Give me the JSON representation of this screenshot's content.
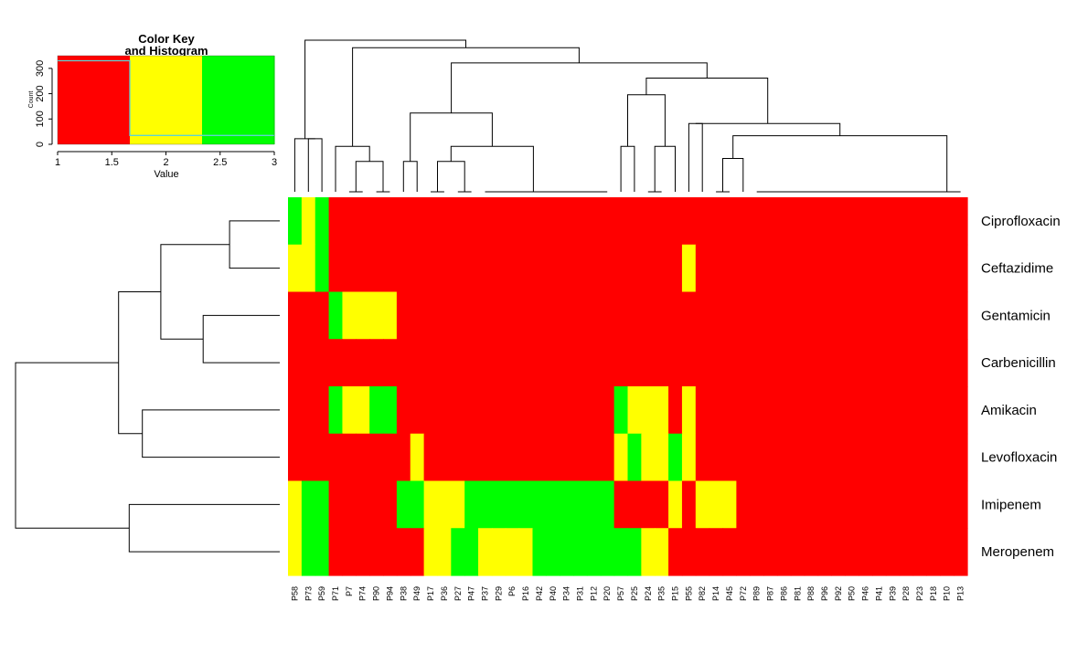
{
  "chart_data": {
    "type": "heatmap",
    "color_key": {
      "title_line1": "Color Key",
      "title_line2": "and Histogram",
      "xlabel": "Value",
      "ylabel": "Count",
      "x_ticks": [
        "1",
        "1.5",
        "2",
        "2.5",
        "3"
      ],
      "x_tick_values": [
        1,
        1.5,
        2,
        2.5,
        3
      ],
      "y_ticks": [
        "0",
        "100",
        "200",
        "300"
      ],
      "y_tick_values": [
        0,
        100,
        200,
        300
      ],
      "value_range": [
        1,
        3
      ],
      "count_range": [
        0,
        350
      ],
      "histogram": [
        {
          "value": 1,
          "count": 330
        },
        {
          "value": 2,
          "count": 35
        },
        {
          "value": 3,
          "count": 35
        }
      ],
      "colors": {
        "1": "#ff0000",
        "2": "#ffff00",
        "3": "#00ff00"
      },
      "histogram_line_color": "#5fd3d3"
    },
    "rows": [
      "Ciprofloxacin",
      "Ceftazidime",
      "Gentamicin",
      "Carbenicillin",
      "Amikacin",
      "Levofloxacin",
      "Imipenem",
      "Meropenem"
    ],
    "columns": [
      "P58",
      "P73",
      "P59",
      "P71",
      "P7",
      "P74",
      "P90",
      "P94",
      "P38",
      "P49",
      "P17",
      "P36",
      "P27",
      "P47",
      "P37",
      "P29",
      "P6",
      "P16",
      "P42",
      "P40",
      "P34",
      "P31",
      "P12",
      "P20",
      "P57",
      "P25",
      "P24",
      "P35",
      "P15",
      "P55",
      "P82",
      "P14",
      "P45",
      "P72",
      "P89",
      "P87",
      "P86",
      "P81",
      "P88",
      "P96",
      "P92",
      "P50",
      "P46",
      "P41",
      "P39",
      "P28",
      "P23",
      "P18",
      "P10",
      "P13"
    ],
    "values": [
      [
        3,
        2,
        3,
        1,
        1,
        1,
        1,
        1,
        1,
        1,
        1,
        1,
        1,
        1,
        1,
        1,
        1,
        1,
        1,
        1,
        1,
        1,
        1,
        1,
        1,
        1,
        1,
        1,
        1,
        1,
        1,
        1,
        1,
        1,
        1,
        1,
        1,
        1,
        1,
        1,
        1,
        1,
        1,
        1,
        1,
        1,
        1,
        1,
        1,
        1
      ],
      [
        2,
        2,
        3,
        1,
        1,
        1,
        1,
        1,
        1,
        1,
        1,
        1,
        1,
        1,
        1,
        1,
        1,
        1,
        1,
        1,
        1,
        1,
        1,
        1,
        1,
        1,
        1,
        1,
        1,
        2,
        1,
        1,
        1,
        1,
        1,
        1,
        1,
        1,
        1,
        1,
        1,
        1,
        1,
        1,
        1,
        1,
        1,
        1,
        1,
        1
      ],
      [
        1,
        1,
        1,
        3,
        2,
        2,
        2,
        2,
        1,
        1,
        1,
        1,
        1,
        1,
        1,
        1,
        1,
        1,
        1,
        1,
        1,
        1,
        1,
        1,
        1,
        1,
        1,
        1,
        1,
        1,
        1,
        1,
        1,
        1,
        1,
        1,
        1,
        1,
        1,
        1,
        1,
        1,
        1,
        1,
        1,
        1,
        1,
        1,
        1,
        1
      ],
      [
        1,
        1,
        1,
        1,
        1,
        1,
        1,
        1,
        1,
        1,
        1,
        1,
        1,
        1,
        1,
        1,
        1,
        1,
        1,
        1,
        1,
        1,
        1,
        1,
        1,
        1,
        1,
        1,
        1,
        1,
        1,
        1,
        1,
        1,
        1,
        1,
        1,
        1,
        1,
        1,
        1,
        1,
        1,
        1,
        1,
        1,
        1,
        1,
        1,
        1
      ],
      [
        1,
        1,
        1,
        3,
        2,
        2,
        3,
        3,
        1,
        1,
        1,
        1,
        1,
        1,
        1,
        1,
        1,
        1,
        1,
        1,
        1,
        1,
        1,
        1,
        3,
        2,
        2,
        2,
        1,
        2,
        1,
        1,
        1,
        1,
        1,
        1,
        1,
        1,
        1,
        1,
        1,
        1,
        1,
        1,
        1,
        1,
        1,
        1,
        1,
        1
      ],
      [
        1,
        1,
        1,
        1,
        1,
        1,
        1,
        1,
        1,
        2,
        1,
        1,
        1,
        1,
        1,
        1,
        1,
        1,
        1,
        1,
        1,
        1,
        1,
        1,
        2,
        3,
        2,
        2,
        3,
        2,
        1,
        1,
        1,
        1,
        1,
        1,
        1,
        1,
        1,
        1,
        1,
        1,
        1,
        1,
        1,
        1,
        1,
        1,
        1,
        1
      ],
      [
        2,
        3,
        3,
        1,
        1,
        1,
        1,
        1,
        3,
        3,
        2,
        2,
        2,
        3,
        3,
        3,
        3,
        3,
        3,
        3,
        3,
        3,
        3,
        3,
        1,
        1,
        1,
        1,
        2,
        1,
        2,
        2,
        2,
        1,
        1,
        1,
        1,
        1,
        1,
        1,
        1,
        1,
        1,
        1,
        1,
        1,
        1,
        1,
        1,
        1
      ],
      [
        2,
        3,
        3,
        1,
        1,
        1,
        1,
        1,
        1,
        1,
        2,
        2,
        3,
        3,
        2,
        2,
        2,
        2,
        3,
        3,
        3,
        3,
        3,
        3,
        3,
        3,
        2,
        2,
        1,
        1,
        1,
        1,
        1,
        1,
        1,
        1,
        1,
        1,
        1,
        1,
        1,
        1,
        1,
        1,
        1,
        1,
        1,
        1,
        1,
        1
      ]
    ],
    "row_dendrogram": {
      "leaves": [
        "Ciprofloxacin",
        "Ceftazidime",
        "Gentamicin",
        "Carbenicillin",
        "Amikacin",
        "Levofloxacin",
        "Imipenem",
        "Meropenem"
      ],
      "merges": [
        {
          "left": "L0",
          "right": "L1",
          "height": 0.19
        },
        {
          "left": "L2",
          "right": "L3",
          "height": 0.29
        },
        {
          "left": "M0",
          "right": "M1",
          "height": 0.45
        },
        {
          "left": "L4",
          "right": "L5",
          "height": 0.52
        },
        {
          "left": "M2",
          "right": "M3",
          "height": 0.61
        },
        {
          "left": "L6",
          "right": "L7",
          "height": 0.57
        },
        {
          "left": "M4",
          "right": "M5",
          "height": 1.0
        }
      ]
    },
    "column_dendrogram": {
      "leaves": [
        "P58",
        "P73",
        "P59",
        "P71",
        "P7",
        "P74",
        "P90",
        "P94",
        "P38",
        "P49",
        "P17",
        "P36",
        "P27",
        "P47",
        "P37",
        "P29",
        "P6",
        "P16",
        "P42",
        "P40",
        "P34",
        "P31",
        "P12",
        "P20",
        "P57",
        "P25",
        "P24",
        "P35",
        "P15",
        "P55",
        "P82",
        "P14",
        "P45",
        "P72",
        "P89",
        "P87",
        "P86",
        "P81",
        "P88",
        "P96",
        "P92",
        "P50",
        "P46",
        "P41",
        "P39",
        "P28",
        "P23",
        "P18",
        "P10",
        "P13"
      ],
      "merges": [
        {
          "left": "L1",
          "right": "L2",
          "height": 0.35
        },
        {
          "left": "L0",
          "right": "M0",
          "height": 0.35
        },
        {
          "left": "L4",
          "right": "L5",
          "height": 0.0
        },
        {
          "left": "L6",
          "right": "L7",
          "height": 0.0
        },
        {
          "left": "M2",
          "right": "M3",
          "height": 0.2
        },
        {
          "left": "L3",
          "right": "M4",
          "height": 0.3
        },
        {
          "left": "L8",
          "right": "L9",
          "height": 0.2
        },
        {
          "left": "L10",
          "right": "L11",
          "height": 0.0
        },
        {
          "left": "L12",
          "right": "L13",
          "height": 0.0
        },
        {
          "left": "M7",
          "right": "M8",
          "height": 0.2
        },
        {
          "left": "L14",
          "right": "L15",
          "height": 0.0
        },
        {
          "left": "L16",
          "right": "L17",
          "height": 0.0
        },
        {
          "left": "M10",
          "right": "M11",
          "height": 0.0
        },
        {
          "left": "L18",
          "right": "L19",
          "height": 0.0
        },
        {
          "left": "M12",
          "right": "M13",
          "height": 0.0
        },
        {
          "left": "L20",
          "right": "L21",
          "height": 0.0
        },
        {
          "left": "M14",
          "right": "M15",
          "height": 0.0
        },
        {
          "left": "L22",
          "right": "L23",
          "height": 0.0
        },
        {
          "left": "M16",
          "right": "M17",
          "height": 0.0
        },
        {
          "left": "M18",
          "right": "M10",
          "height": 0.0
        },
        {
          "left": "M9",
          "right": "M19",
          "height": 0.3
        },
        {
          "left": "M6",
          "right": "M20",
          "height": 0.52
        },
        {
          "left": "L24",
          "right": "L25",
          "height": 0.3
        },
        {
          "left": "L26",
          "right": "L27",
          "height": 0.0
        },
        {
          "left": "L28",
          "right": "M23",
          "height": 0.3
        },
        {
          "left": "M22",
          "right": "M24",
          "height": 0.64
        },
        {
          "left": "L29",
          "right": "L30",
          "height": 0.45
        },
        {
          "left": "L31",
          "right": "L32",
          "height": 0.0
        },
        {
          "left": "L33",
          "right": "M27",
          "height": 0.22
        },
        {
          "left": "L34",
          "right": "L35",
          "height": 0.0
        },
        {
          "left": "M29",
          "right": "L36",
          "height": 0.0
        },
        {
          "left": "M30",
          "right": "L37",
          "height": 0.0
        },
        {
          "left": "M31",
          "right": "L38",
          "height": 0.0
        },
        {
          "left": "M32",
          "right": "L39",
          "height": 0.0
        },
        {
          "left": "M33",
          "right": "L40",
          "height": 0.0
        },
        {
          "left": "M34",
          "right": "L41",
          "height": 0.0
        },
        {
          "left": "M35",
          "right": "L42",
          "height": 0.0
        },
        {
          "left": "M36",
          "right": "L43",
          "height": 0.0
        },
        {
          "left": "M37",
          "right": "L44",
          "height": 0.0
        },
        {
          "left": "M38",
          "right": "L45",
          "height": 0.0
        },
        {
          "left": "M39",
          "right": "L46",
          "height": 0.0
        },
        {
          "left": "M40",
          "right": "L47",
          "height": 0.0
        },
        {
          "left": "M41",
          "right": "L48",
          "height": 0.0
        },
        {
          "left": "M42",
          "right": "L49",
          "height": 0.0
        },
        {
          "left": "M28",
          "right": "M43",
          "height": 0.37
        },
        {
          "left": "M26",
          "right": "M44",
          "height": 0.45
        },
        {
          "left": "M25",
          "right": "M45",
          "height": 0.75
        },
        {
          "left": "M21",
          "right": "M46",
          "height": 0.85
        },
        {
          "left": "M5",
          "right": "M47",
          "height": 0.95
        },
        {
          "left": "M1",
          "right": "M48",
          "height": 1.0
        }
      ]
    }
  }
}
